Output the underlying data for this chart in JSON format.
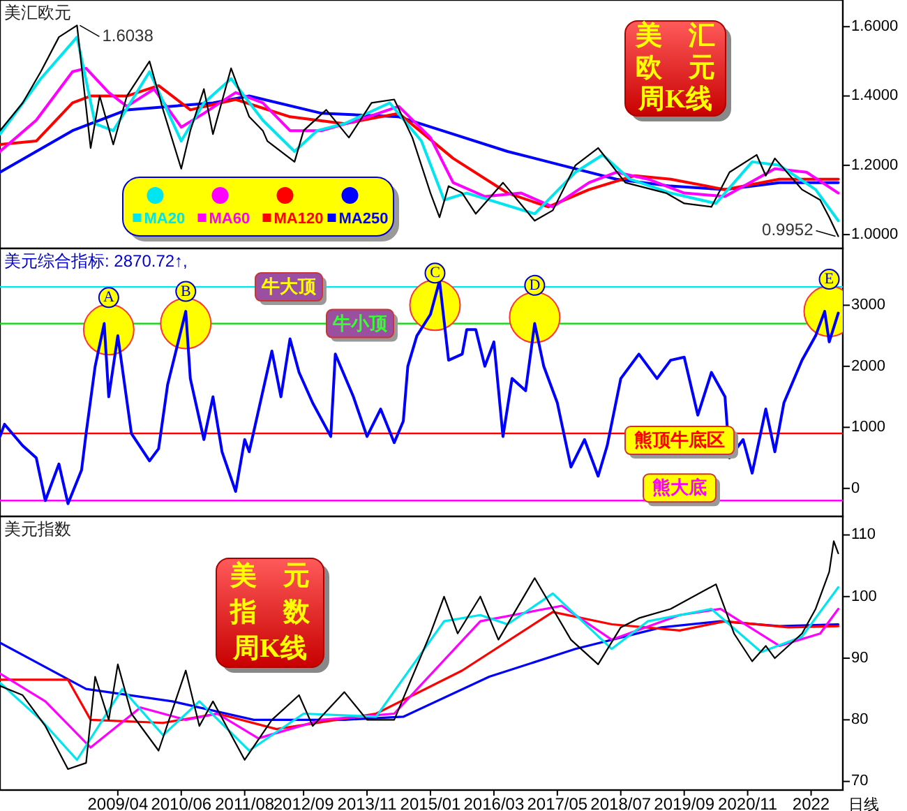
{
  "chart_data": [
    {
      "type": "line",
      "title": "美汇欧元",
      "xlim": [
        "2007-02",
        "2022-08"
      ],
      "ylim": [
        0.96,
        1.677
      ],
      "yticks": [
        {
          "value": 1.0,
          "label": "1.0000"
        },
        {
          "value": 1.2,
          "label": "1.2000"
        },
        {
          "value": 1.4,
          "label": "1.4000"
        },
        {
          "value": 1.6,
          "label": "1.6000"
        }
      ],
      "tick_labels": "y",
      "legend": "bottom left",
      "annotations": [
        "美　汇欧　元周K线",
        {
          "text": "1.6038",
          "x": "2008-07",
          "y": 1.6038
        },
        {
          "text": "0.9952",
          "x": "2022-07",
          "y": 0.9952
        }
      ],
      "series": [
        {
          "color": "#000000",
          "x": [
            "2007-02",
            "2007-07",
            "2007-11",
            "2008-03",
            "2008-07",
            "2008-10",
            "2008-12",
            "2009-03",
            "2009-06",
            "2009-11",
            "2010-02",
            "2010-06",
            "2010-08",
            "2010-11",
            "2011-01",
            "2011-05",
            "2011-09",
            "2011-12",
            "2012-01",
            "2012-07",
            "2012-09",
            "2013-02",
            "2013-07",
            "2013-12",
            "2014-05",
            "2014-09",
            "2015-01",
            "2015-03",
            "2015-05",
            "2015-08",
            "2015-11",
            "2016-05",
            "2016-12",
            "2017-04",
            "2017-09",
            "2018-02",
            "2018-08",
            "2019-05",
            "2019-09",
            "2020-03",
            "2020-07",
            "2021-01",
            "2021-03",
            "2021-05",
            "2021-11",
            "2022-03",
            "2022-05",
            "2022-07"
          ],
          "values": [
            1.3,
            1.38,
            1.47,
            1.57,
            1.6038,
            1.25,
            1.4,
            1.26,
            1.4,
            1.5,
            1.36,
            1.19,
            1.3,
            1.42,
            1.29,
            1.48,
            1.34,
            1.3,
            1.27,
            1.21,
            1.3,
            1.36,
            1.28,
            1.38,
            1.39,
            1.28,
            1.12,
            1.05,
            1.14,
            1.12,
            1.06,
            1.15,
            1.04,
            1.07,
            1.2,
            1.25,
            1.15,
            1.12,
            1.09,
            1.08,
            1.18,
            1.23,
            1.17,
            1.22,
            1.13,
            1.1,
            1.05,
            0.9952
          ]
        },
        {
          "name": "MA20",
          "color": "#00e5ee",
          "x": [
            "2007-02",
            "2007-11",
            "2008-07",
            "2008-11",
            "2009-03",
            "2009-11",
            "2010-06",
            "2010-11",
            "2011-05",
            "2011-12",
            "2012-07",
            "2012-12",
            "2013-06",
            "2014-04",
            "2014-11",
            "2015-04",
            "2015-09",
            "2016-12",
            "2017-09",
            "2018-03",
            "2018-09",
            "2019-06",
            "2020-04",
            "2020-12",
            "2021-06",
            "2022-02",
            "2022-07"
          ],
          "values": [
            1.29,
            1.45,
            1.57,
            1.32,
            1.3,
            1.47,
            1.27,
            1.38,
            1.45,
            1.33,
            1.24,
            1.3,
            1.32,
            1.38,
            1.27,
            1.1,
            1.12,
            1.06,
            1.18,
            1.23,
            1.16,
            1.12,
            1.09,
            1.21,
            1.2,
            1.13,
            1.04
          ]
        },
        {
          "name": "MA60",
          "color": "#ff00ff",
          "x": [
            "2007-02",
            "2007-10",
            "2008-06",
            "2008-09",
            "2009-02",
            "2009-06",
            "2009-12",
            "2010-06",
            "2010-11",
            "2011-06",
            "2011-12",
            "2012-06",
            "2013-01",
            "2013-09",
            "2014-06",
            "2015-01",
            "2015-06",
            "2016-01",
            "2016-09",
            "2017-04",
            "2017-12",
            "2018-06",
            "2019-01",
            "2019-09",
            "2020-06",
            "2021-05",
            "2021-12",
            "2022-07"
          ],
          "values": [
            1.24,
            1.33,
            1.47,
            1.48,
            1.41,
            1.37,
            1.42,
            1.31,
            1.35,
            1.41,
            1.38,
            1.3,
            1.3,
            1.33,
            1.37,
            1.28,
            1.15,
            1.11,
            1.12,
            1.08,
            1.15,
            1.18,
            1.16,
            1.12,
            1.11,
            1.19,
            1.18,
            1.12
          ]
        },
        {
          "name": "MA120",
          "color": "#ff0000",
          "x": [
            "2007-02",
            "2007-10",
            "2008-06",
            "2008-10",
            "2009-06",
            "2010-01",
            "2010-08",
            "2011-06",
            "2012-06",
            "2013-06",
            "2014-06",
            "2015-06",
            "2016-06",
            "2017-03",
            "2017-12",
            "2018-10",
            "2019-06",
            "2020-06",
            "2021-06",
            "2022-07"
          ],
          "values": [
            1.26,
            1.27,
            1.38,
            1.4,
            1.4,
            1.43,
            1.36,
            1.39,
            1.34,
            1.32,
            1.35,
            1.22,
            1.12,
            1.08,
            1.13,
            1.17,
            1.16,
            1.13,
            1.16,
            1.16
          ]
        },
        {
          "name": "MA250",
          "color": "#0000ff",
          "x": [
            "2007-02",
            "2008-06",
            "2009-06",
            "2011-01",
            "2011-09",
            "2013-01",
            "2014-06",
            "2015-06",
            "2016-06",
            "2017-06",
            "2018-06",
            "2019-06",
            "2020-06",
            "2021-06",
            "2022-07"
          ],
          "values": [
            1.18,
            1.3,
            1.36,
            1.38,
            1.4,
            1.35,
            1.34,
            1.29,
            1.24,
            1.2,
            1.16,
            1.14,
            1.13,
            1.15,
            1.15
          ]
        }
      ]
    },
    {
      "type": "line",
      "subtitle": "美元综合指标: 2870.72↑,",
      "xlim": [
        "2007-02",
        "2022-08"
      ],
      "ylim": [
        -460,
        3930
      ],
      "yticks": [
        0,
        1000,
        2000,
        3000
      ],
      "tick_labels": "y",
      "ref_lines": [
        {
          "axis": "y",
          "value": 3300,
          "label": "牛大顶",
          "color": "#00e5ee"
        },
        {
          "axis": "y",
          "value": 2700,
          "label": "牛小顶",
          "color": "#00dd00"
        },
        {
          "axis": "y",
          "value": 900,
          "label": "熊顶牛底区",
          "color": "#ff0000"
        },
        {
          "axis": "y",
          "value": -200,
          "label": "熊大底",
          "color": "#ff00ff"
        }
      ],
      "annotations": [
        {
          "text": "A",
          "x": "2009-02",
          "y": 2600
        },
        {
          "text": "B",
          "x": "2010-07",
          "y": 2700
        },
        {
          "text": "C",
          "x": "2015-02",
          "y": 3000
        },
        {
          "text": "D",
          "x": "2016-12",
          "y": 2800
        },
        {
          "text": "E",
          "x": "2022-05",
          "y": 2900
        }
      ],
      "series": [
        {
          "color": "#0000ff",
          "x": [
            "2007-02",
            "2007-03",
            "2007-07",
            "2007-10",
            "2007-12",
            "2008-03",
            "2008-05",
            "2008-08",
            "2008-09",
            "2008-11",
            "2009-01",
            "2009-02",
            "2009-04",
            "2009-07",
            "2009-11",
            "2010-01",
            "2010-03",
            "2010-07",
            "2010-08",
            "2010-11",
            "2011-01",
            "2011-03",
            "2011-06",
            "2011-08",
            "2011-09",
            "2012-02",
            "2012-04",
            "2012-06",
            "2012-08",
            "2012-11",
            "2013-03",
            "2013-04",
            "2013-08",
            "2013-11",
            "2014-02",
            "2014-05",
            "2014-07",
            "2014-08",
            "2014-10",
            "2015-01",
            "2015-03",
            "2015-05",
            "2015-08",
            "2015-09",
            "2015-11",
            "2016-01",
            "2016-03",
            "2016-05",
            "2016-07",
            "2016-10",
            "2016-12",
            "2017-02",
            "2017-05",
            "2017-08",
            "2017-11",
            "2018-02",
            "2018-04",
            "2018-07",
            "2018-11",
            "2019-03",
            "2019-06",
            "2019-09",
            "2019-12",
            "2020-03",
            "2020-06",
            "2020-07",
            "2020-10",
            "2020-12",
            "2021-03",
            "2021-05",
            "2021-07",
            "2021-11",
            "2022-02",
            "2022-04",
            "2022-05",
            "2022-07"
          ],
          "values": [
            850,
            1050,
            700,
            500,
            -200,
            400,
            -250,
            300,
            900,
            2000,
            2700,
            1500,
            2500,
            900,
            450,
            650,
            1700,
            2900,
            1800,
            800,
            1500,
            600,
            -50,
            800,
            600,
            2250,
            1500,
            2450,
            1900,
            1400,
            850,
            2200,
            1500,
            850,
            1300,
            750,
            1100,
            2000,
            2500,
            2850,
            3400,
            2100,
            2200,
            2600,
            2600,
            2000,
            2400,
            850,
            1800,
            1600,
            2700,
            2000,
            1400,
            350,
            800,
            200,
            700,
            1800,
            2200,
            1800,
            2100,
            2150,
            1200,
            1900,
            1500,
            500,
            800,
            250,
            1300,
            600,
            1400,
            2100,
            2500,
            2900,
            2400,
            2870.72
          ]
        }
      ]
    },
    {
      "type": "line",
      "title": "美元指数",
      "xlim": [
        "2007-02",
        "2022-08"
      ],
      "ylim": [
        68.6,
        113
      ],
      "yticks": [
        70,
        80,
        90,
        100,
        110
      ],
      "xticks": [
        {
          "value": "2009-04",
          "label": "2009/04"
        },
        {
          "value": "2010-06",
          "label": "2010/06"
        },
        {
          "value": "2011-08",
          "label": "2011/08"
        },
        {
          "value": "2012-09",
          "label": "2012/09"
        },
        {
          "value": "2013-11",
          "label": "2013/11"
        },
        {
          "value": "2015-01",
          "label": "2015/01"
        },
        {
          "value": "2016-03",
          "label": "2016/03"
        },
        {
          "value": "2017-05",
          "label": "2017/05"
        },
        {
          "value": "2018-07",
          "label": "2018/07"
        },
        {
          "value": "2019-09",
          "label": "2019/09"
        },
        {
          "value": "2020-11",
          "label": "2020/11"
        },
        {
          "value": "2022-01",
          "label": "2022"
        }
      ],
      "annotations": [
        "美　元指　数周K线",
        "日线"
      ],
      "series": [
        {
          "color": "#000000",
          "x": [
            "2007-02",
            "2007-07",
            "2007-12",
            "2008-05",
            "2008-09",
            "2008-11",
            "2009-02",
            "2009-04",
            "2009-07",
            "2010-01",
            "2010-07",
            "2010-10",
            "2011-01",
            "2011-08",
            "2012-02",
            "2012-08",
            "2012-11",
            "2013-06",
            "2013-11",
            "2014-05",
            "2015-01",
            "2015-04",
            "2015-07",
            "2015-12",
            "2016-04",
            "2016-12",
            "2017-08",
            "2018-02",
            "2018-07",
            "2018-11",
            "2019-06",
            "2020-04",
            "2020-08",
            "2020-12",
            "2021-03",
            "2021-05",
            "2021-11",
            "2022-02",
            "2022-05",
            "2022-06",
            "2022-07"
          ],
          "values": [
            85.5,
            84,
            79,
            72,
            73,
            87,
            80,
            89,
            81,
            75,
            88,
            79,
            83,
            73.5,
            80,
            84,
            79,
            84.5,
            80,
            80,
            94,
            100,
            94,
            100,
            93,
            103,
            93,
            89,
            95,
            96.5,
            98,
            102,
            94,
            89.5,
            92,
            90,
            94,
            98,
            104,
            109,
            107
          ]
        },
        {
          "color": "#00e5ee",
          "x": [
            "2007-02",
            "2007-11",
            "2008-07",
            "2009-05",
            "2010-02",
            "2010-10",
            "2011-09",
            "2012-09",
            "2014-01",
            "2015-04",
            "2015-12",
            "2016-06",
            "2017-04",
            "2018-05",
            "2019-01",
            "2020-03",
            "2021-02",
            "2021-11",
            "2022-07"
          ],
          "values": [
            86,
            80,
            73.5,
            85,
            77.5,
            83,
            75,
            81,
            80.5,
            96,
            97,
            95.5,
            100.5,
            91.5,
            96,
            98,
            91,
            93.5,
            101.5
          ]
        },
        {
          "color": "#ff00ff",
          "x": [
            "2007-02",
            "2007-12",
            "2008-10",
            "2009-09",
            "2010-07",
            "2011-02",
            "2011-11",
            "2013-01",
            "2014-05",
            "2015-12",
            "2017-06",
            "2018-05",
            "2019-08",
            "2020-05",
            "2021-06",
            "2022-03",
            "2022-07"
          ],
          "values": [
            87.5,
            83,
            75.5,
            82,
            80,
            81,
            77,
            80,
            81,
            96,
            98.5,
            93,
            97,
            98,
            92,
            94,
            98
          ]
        },
        {
          "color": "#ff0000",
          "x": [
            "2007-02",
            "2008-05",
            "2008-10",
            "2010-02",
            "2011-02",
            "2012-03",
            "2014-01",
            "2015-08",
            "2017-04",
            "2018-05",
            "2019-08",
            "2020-06",
            "2021-08",
            "2022-07"
          ],
          "values": [
            86.5,
            86.5,
            80,
            79.5,
            81,
            78.5,
            81,
            88,
            97.5,
            95.5,
            94.5,
            96,
            95,
            95.2
          ]
        },
        {
          "color": "#0000ff",
          "x": [
            "2007-02",
            "2008-09",
            "2010-04",
            "2011-10",
            "2013-06",
            "2014-07",
            "2016-02",
            "2017-09",
            "2019-04",
            "2020-05",
            "2021-06",
            "2022-07"
          ],
          "values": [
            92.5,
            85,
            83,
            80,
            80,
            80.5,
            87,
            91.5,
            95,
            96,
            95.2,
            95.5
          ]
        }
      ]
    }
  ]
}
